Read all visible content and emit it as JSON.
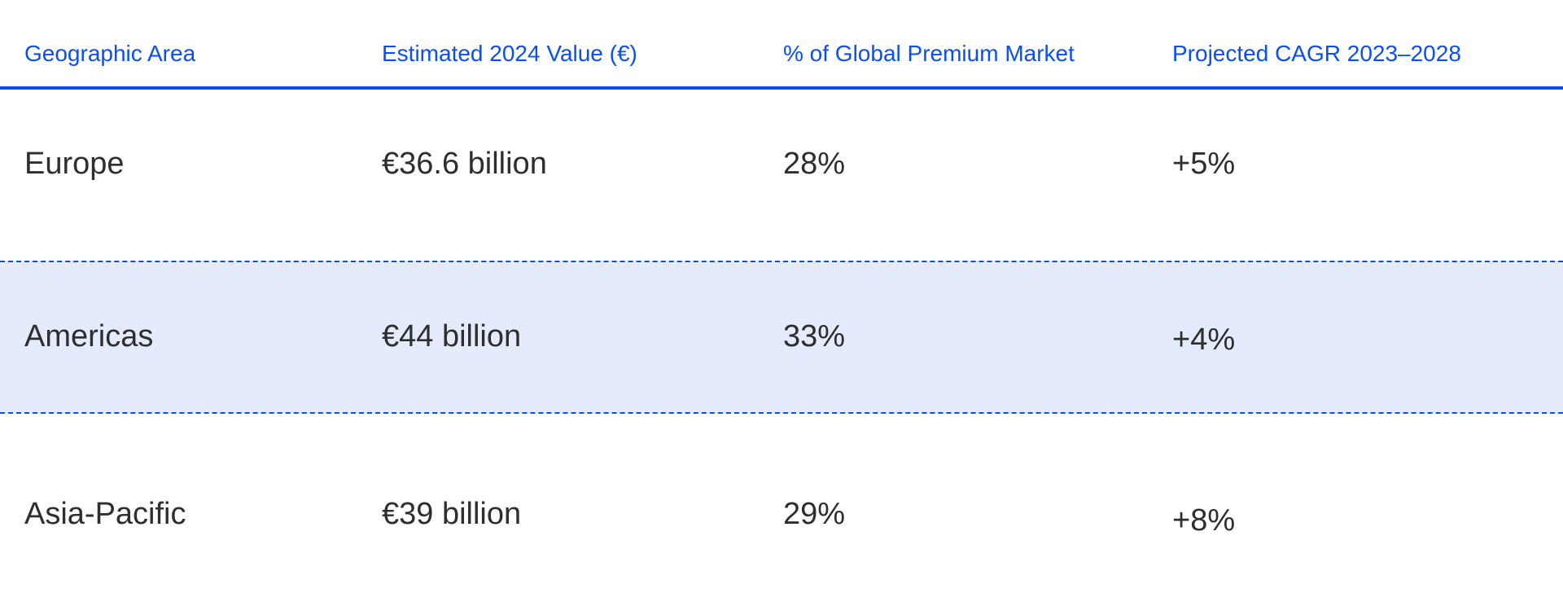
{
  "table": {
    "headers": [
      "Geographic Area",
      "Estimated 2024 Value (€)",
      "% of Global Premium Market",
      "Projected CAGR 2023–2028"
    ],
    "rows": [
      [
        "Europe",
        "€36.6 billion",
        "28%",
        "+5%"
      ],
      [
        "Americas",
        "€44 billion",
        "33%",
        "+4%"
      ],
      [
        "Asia-Pacific",
        "€39 billion",
        "29%",
        "+8%"
      ]
    ]
  },
  "colors": {
    "accent": "#0a4ff0",
    "highlight_row": "#e4ebfd",
    "text": "#2e2e2e"
  }
}
